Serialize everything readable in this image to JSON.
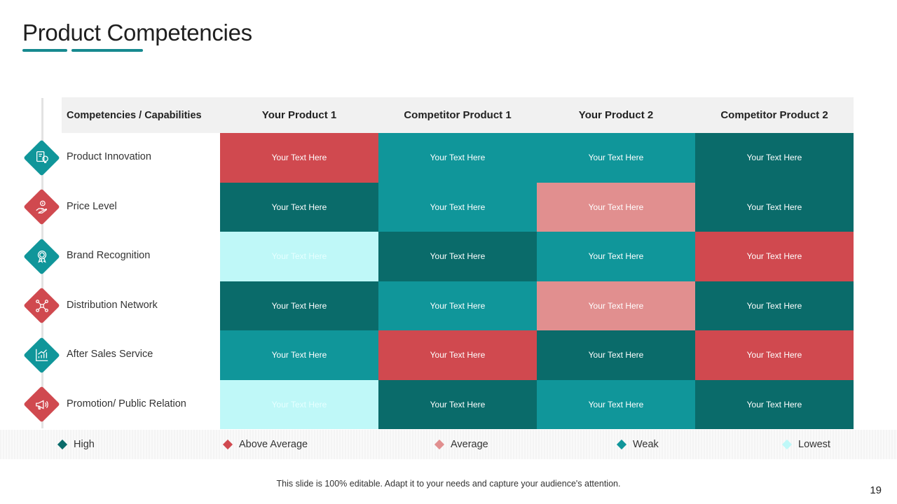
{
  "title": "Product Competencies",
  "colors": {
    "high": "#0a6b6a",
    "above_average": "#d0494f",
    "average": "#e18f8f",
    "weak": "#10969a",
    "lowest": "#bff8f8",
    "accent": "#16898f"
  },
  "header": {
    "first": "Competencies / Capabilities",
    "columns": [
      "Your Product 1",
      "Competitor Product 1",
      "Your Product 2",
      "Competitor Product 2"
    ]
  },
  "rows": [
    {
      "label": "Product Innovation",
      "icon": "innovation-icon",
      "icon_color": "#10969a",
      "cells": [
        "above_average",
        "weak",
        "weak",
        "high"
      ]
    },
    {
      "label": "Price Level",
      "icon": "price-hand-icon",
      "icon_color": "#d0494f",
      "cells": [
        "high",
        "weak",
        "average",
        "high"
      ]
    },
    {
      "label": "Brand Recognition",
      "icon": "award-badge-icon",
      "icon_color": "#10969a",
      "cells": [
        "lowest",
        "high",
        "weak",
        "above_average"
      ]
    },
    {
      "label": "Distribution Network",
      "icon": "network-icon",
      "icon_color": "#d0494f",
      "cells": [
        "high",
        "weak",
        "average",
        "high"
      ]
    },
    {
      "label": "After Sales Service",
      "icon": "growth-chart-icon",
      "icon_color": "#10969a",
      "cells": [
        "weak",
        "above_average",
        "high",
        "above_average"
      ]
    },
    {
      "label": "Promotion/ Public Relation",
      "icon": "megaphone-icon",
      "icon_color": "#d0494f",
      "cells": [
        "lowest",
        "high",
        "weak",
        "high"
      ]
    }
  ],
  "cell_text": "Your Text Here",
  "legend": [
    {
      "key": "high",
      "label": "High"
    },
    {
      "key": "above_average",
      "label": "Above Average"
    },
    {
      "key": "average",
      "label": "Average"
    },
    {
      "key": "weak",
      "label": "Weak"
    },
    {
      "key": "lowest",
      "label": "Lowest"
    }
  ],
  "footer": "This slide is 100% editable. Adapt it to your needs and capture your audience's attention.",
  "page_number": "19"
}
